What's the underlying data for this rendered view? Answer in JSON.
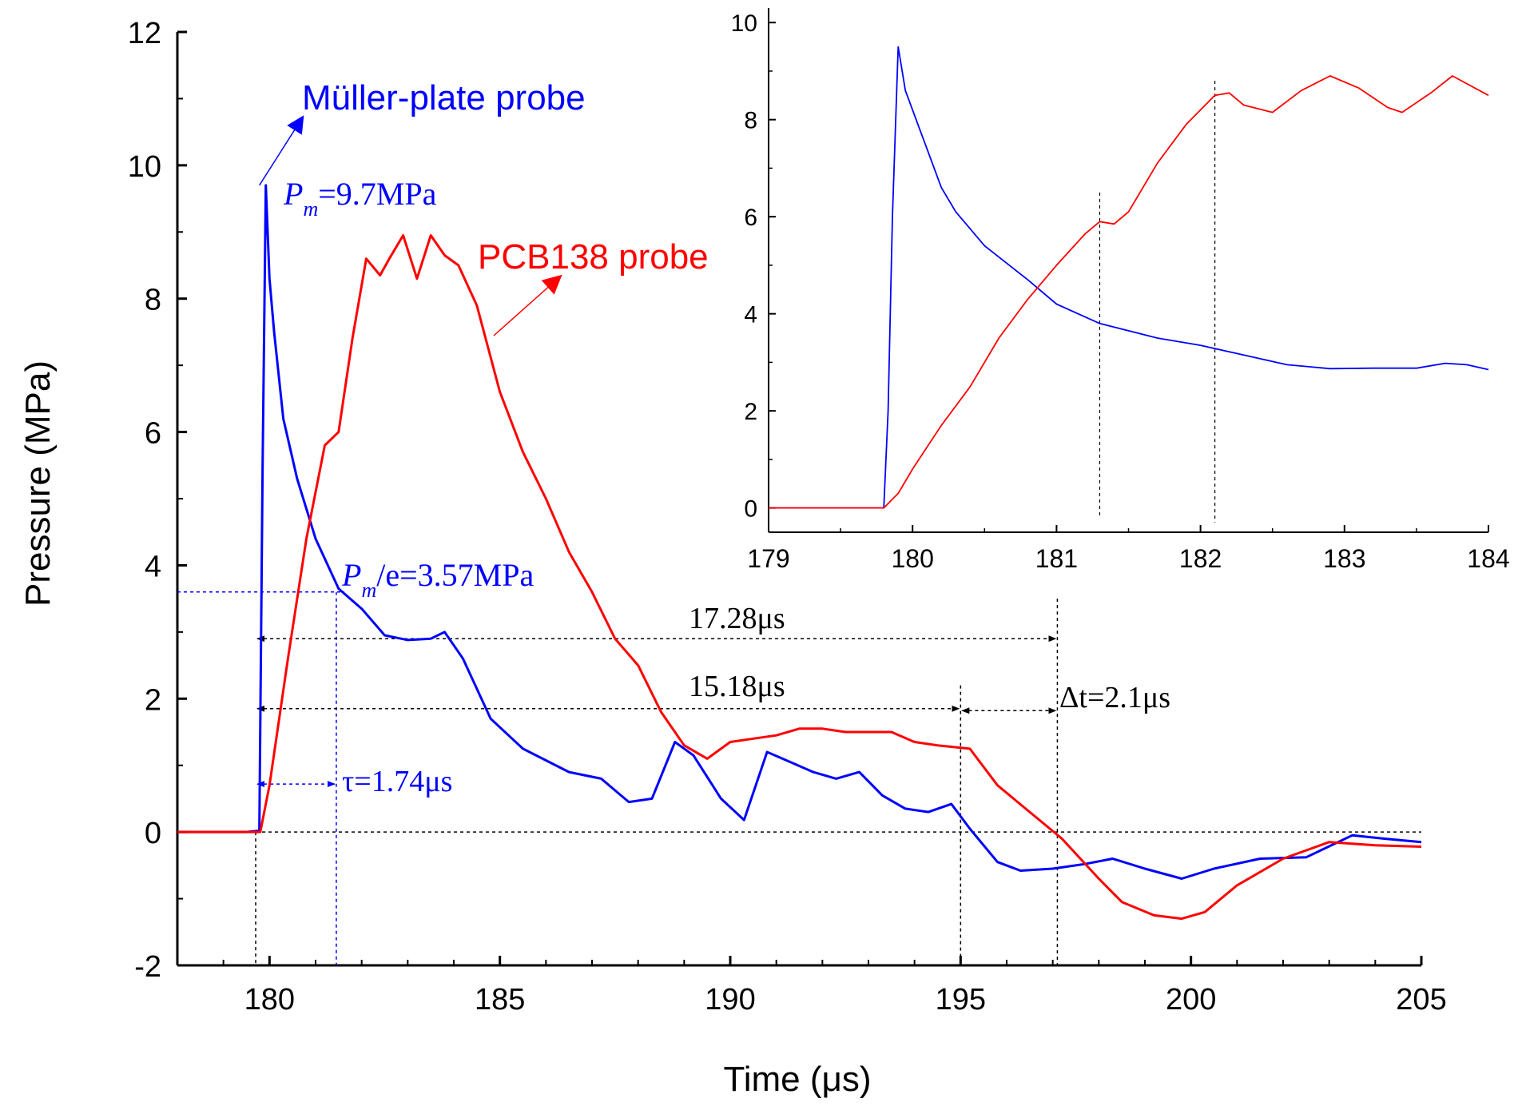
{
  "chart_data": [
    {
      "type": "line",
      "xlabel": "Time (μs)",
      "ylabel": "Pressure (MPa)",
      "xlim": [
        178,
        205
      ],
      "ylim": [
        -2,
        12
      ],
      "x_ticks": [
        "180",
        "185",
        "190",
        "195",
        "200",
        "205"
      ],
      "y_ticks": [
        "-2",
        "0",
        "2",
        "4",
        "6",
        "8",
        "10",
        "12"
      ],
      "grid": false,
      "series": [
        {
          "name": "Müller-plate probe",
          "color": "#0000ff",
          "x": [
            178.0,
            179.5,
            179.78,
            179.85,
            179.92,
            180.0,
            180.1,
            180.3,
            180.6,
            181.0,
            181.5,
            182.0,
            182.5,
            183.0,
            183.5,
            183.8,
            184.2,
            184.8,
            185.5,
            186.5,
            187.2,
            187.8,
            188.3,
            188.8,
            189.2,
            189.8,
            190.3,
            190.8,
            191.3,
            191.8,
            192.3,
            192.8,
            193.3,
            193.8,
            194.3,
            194.8,
            195.2,
            195.8,
            196.3,
            197.0,
            197.7,
            198.3,
            199.0,
            199.8,
            200.5,
            201.5,
            202.5,
            203.5,
            204.2,
            205.0
          ],
          "y": [
            0.0,
            0.0,
            0.02,
            5.5,
            9.7,
            8.3,
            7.5,
            6.2,
            5.3,
            4.4,
            3.65,
            3.35,
            2.95,
            2.88,
            2.9,
            3.0,
            2.6,
            1.7,
            1.25,
            0.9,
            0.8,
            0.45,
            0.5,
            1.35,
            1.15,
            0.5,
            0.18,
            1.2,
            1.05,
            0.9,
            0.8,
            0.9,
            0.55,
            0.35,
            0.3,
            0.42,
            0.05,
            -0.45,
            -0.58,
            -0.55,
            -0.48,
            -0.4,
            -0.55,
            -0.7,
            -0.55,
            -0.4,
            -0.38,
            -0.05,
            -0.1,
            -0.15
          ]
        },
        {
          "name": "PCB138 probe",
          "color": "#ff0000",
          "x": [
            178.0,
            179.5,
            179.8,
            180.0,
            180.4,
            180.8,
            181.2,
            181.5,
            181.8,
            182.1,
            182.4,
            182.6,
            182.9,
            183.2,
            183.5,
            183.8,
            184.1,
            184.5,
            185.0,
            185.5,
            186.0,
            186.5,
            187.0,
            187.5,
            188.0,
            188.5,
            189.0,
            189.5,
            190.0,
            190.5,
            191.0,
            191.5,
            192.0,
            192.5,
            193.0,
            193.5,
            194.0,
            194.5,
            195.2,
            195.8,
            196.5,
            197.2,
            198.0,
            198.5,
            199.2,
            199.8,
            200.3,
            201.0,
            202.0,
            203.0,
            204.0,
            205.0
          ],
          "y": [
            0.0,
            0.0,
            0.0,
            0.7,
            2.6,
            4.4,
            5.8,
            6.0,
            7.4,
            8.6,
            8.35,
            8.6,
            8.95,
            8.3,
            8.95,
            8.65,
            8.5,
            7.9,
            6.6,
            5.7,
            5.0,
            4.2,
            3.6,
            2.9,
            2.5,
            1.8,
            1.3,
            1.1,
            1.35,
            1.4,
            1.45,
            1.55,
            1.55,
            1.5,
            1.5,
            1.5,
            1.35,
            1.3,
            1.25,
            0.7,
            0.3,
            -0.1,
            -0.7,
            -1.05,
            -1.25,
            -1.3,
            -1.2,
            -0.8,
            -0.4,
            -0.15,
            -0.2,
            -0.22
          ]
        }
      ],
      "annotations": {
        "muller_label": "Müller-plate probe",
        "pcb_label": "PCB138 probe",
        "pm_var": "P",
        "pm_sub": "m",
        "pm_value": "=9.7MPa",
        "pme_value": "/e=3.57MPa",
        "dur1": "17.28μs",
        "dur2": "15.18μs",
        "dt": "Δt=2.1μs",
        "tau": "τ=1.74μs"
      }
    },
    {
      "type": "line",
      "xlim": [
        179,
        184
      ],
      "ylim": [
        -0.5,
        10.3
      ],
      "x_ticks": [
        "179",
        "180",
        "181",
        "182",
        "183",
        "184"
      ],
      "y_ticks": [
        "0",
        "2",
        "4",
        "6",
        "8",
        "10"
      ],
      "grid": false,
      "series": [
        {
          "name": "Müller-plate probe",
          "color": "#0000ff",
          "x": [
            179.0,
            179.8,
            179.83,
            179.86,
            179.9,
            179.95,
            180.0,
            180.05,
            180.1,
            180.2,
            180.3,
            180.5,
            180.8,
            181.0,
            181.3,
            181.7,
            182.0,
            182.3,
            182.6,
            182.9,
            183.2,
            183.5,
            183.7,
            183.85,
            184.0
          ],
          "y": [
            0.0,
            0.0,
            2.0,
            6.0,
            9.5,
            8.6,
            8.2,
            7.8,
            7.4,
            6.6,
            6.1,
            5.4,
            4.7,
            4.2,
            3.8,
            3.5,
            3.35,
            3.15,
            2.95,
            2.87,
            2.88,
            2.88,
            2.98,
            2.95,
            2.85
          ]
        },
        {
          "name": "PCB138 probe",
          "color": "#ff0000",
          "x": [
            179.0,
            179.8,
            179.9,
            180.0,
            180.2,
            180.4,
            180.6,
            180.8,
            181.0,
            181.2,
            181.3,
            181.4,
            181.5,
            181.7,
            181.9,
            182.1,
            182.2,
            182.3,
            182.5,
            182.7,
            182.9,
            183.1,
            183.3,
            183.4,
            183.6,
            183.75,
            184.0
          ],
          "y": [
            0.0,
            0.0,
            0.3,
            0.8,
            1.7,
            2.5,
            3.5,
            4.3,
            5.0,
            5.65,
            5.9,
            5.85,
            6.1,
            7.1,
            7.9,
            8.5,
            8.55,
            8.3,
            8.15,
            8.6,
            8.9,
            8.65,
            8.25,
            8.15,
            8.55,
            8.9,
            8.5
          ]
        }
      ]
    }
  ]
}
